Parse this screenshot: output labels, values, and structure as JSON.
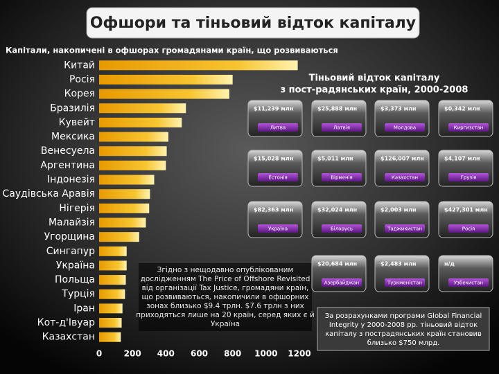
{
  "header": {
    "title": "Офшори та тіньовий відток капіталу"
  },
  "chart_data": {
    "type": "bar",
    "orientation": "horizontal",
    "title": "Капітали, накопичені в офшорах громадянами країн, що розвиваються",
    "categories": [
      "Китай",
      "Росія",
      "Корея",
      "Бразилія",
      "Кувейт",
      "Мексика",
      "Венесуела",
      "Аргентина",
      "Індонезія",
      "Саудівська Аравія",
      "Нігерія",
      "Малайзія",
      "Угорщина",
      "Сингапур",
      "Україна",
      "Польща",
      "Турція",
      "Іран",
      "Кот-д'Івуар",
      "Казахстан"
    ],
    "values": [
      1190,
      800,
      780,
      520,
      495,
      415,
      405,
      400,
      330,
      305,
      300,
      280,
      240,
      165,
      165,
      160,
      155,
      140,
      135,
      130
    ],
    "color": "#f5b800",
    "xlim": [
      0,
      1200
    ],
    "xticks": [
      0,
      200,
      400,
      600,
      800,
      1000,
      1200
    ],
    "grid": false
  },
  "panel": {
    "title": [
      "Тіньовий відток капіталу",
      "з пост-радянських країн, 2000-2008"
    ],
    "tiles": [
      {
        "value": "$11,239 млн",
        "country": "Литва"
      },
      {
        "value": "$25,888 млн",
        "country": "Латвія"
      },
      {
        "value": "$3,373 млн",
        "country": "Молдова"
      },
      {
        "value": "$0,342 млн",
        "country": "Киргизстан"
      },
      {
        "value": "$15,028 млн",
        "country": "Естонія"
      },
      {
        "value": "$5,011 млн",
        "country": "Вірменія"
      },
      {
        "value": "$126,007 млн",
        "country": "Казахстан"
      },
      {
        "value": "$4,107 млн",
        "country": "Грузія"
      },
      {
        "value": "$82,363 млн",
        "country": "Україна"
      },
      {
        "value": "$32,024 млн",
        "country": "Білорусь"
      },
      {
        "value": "$2,003 млн",
        "country": "Таджикистан"
      },
      {
        "value": "$427,301 млн",
        "country": "Росія"
      },
      {
        "value": "$20,684 млн",
        "country": "Азербайджан"
      },
      {
        "value": "$2,483 млн",
        "country": "Туркменістан"
      },
      {
        "value": "н/д",
        "country": "Узбекистан"
      }
    ]
  },
  "notes": [
    [
      "Згідно з нещодавно опублікованим",
      "дослідженням The Price of Offshore Revisited",
      "від організації Tax Justice, громадяни країн,",
      "що розвиваються, накопичили в офшорних",
      "зонах близько $9.4 трлн. $7.6 трлн з них",
      "приходяться лише на 20 країн, серед яких є й",
      "Україна"
    ],
    [
      "За розрахунками програми Global Financial",
      "Integrity у 2000-2008 рр. тіньовий відток",
      "капіталу з пострадянських країн становив",
      "близько $750 млрд."
    ]
  ]
}
